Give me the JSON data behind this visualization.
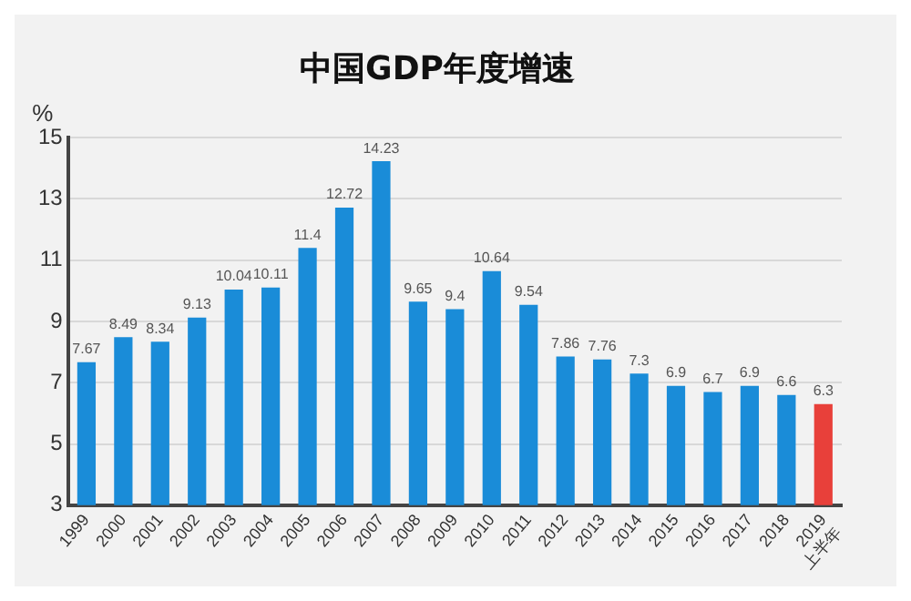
{
  "chart_data": {
    "type": "bar",
    "title": "中国GDP年度增速",
    "ylabel": "%",
    "categories": [
      "1999",
      "2000",
      "2001",
      "2002",
      "2003",
      "2004",
      "2005",
      "2006",
      "2007",
      "2008",
      "2009",
      "2010",
      "2011",
      "2012",
      "2013",
      "2014",
      "2015",
      "2016",
      "2017",
      "2018",
      "2019\n上半年"
    ],
    "values": [
      7.67,
      8.49,
      8.34,
      9.13,
      10.04,
      10.11,
      11.4,
      12.72,
      14.23,
      9.65,
      9.4,
      10.64,
      9.54,
      7.86,
      7.76,
      7.3,
      6.9,
      6.7,
      6.9,
      6.6,
      6.3
    ],
    "colors": [
      "#1a8cd8",
      "#1a8cd8",
      "#1a8cd8",
      "#1a8cd8",
      "#1a8cd8",
      "#1a8cd8",
      "#1a8cd8",
      "#1a8cd8",
      "#1a8cd8",
      "#1a8cd8",
      "#1a8cd8",
      "#1a8cd8",
      "#1a8cd8",
      "#1a8cd8",
      "#1a8cd8",
      "#1a8cd8",
      "#1a8cd8",
      "#1a8cd8",
      "#1a8cd8",
      "#1a8cd8",
      "#e8403a"
    ],
    "ylim": [
      3,
      15
    ],
    "yticks": [
      3,
      5,
      7,
      9,
      11,
      13,
      15
    ],
    "grid": "y",
    "data_labels": true
  }
}
